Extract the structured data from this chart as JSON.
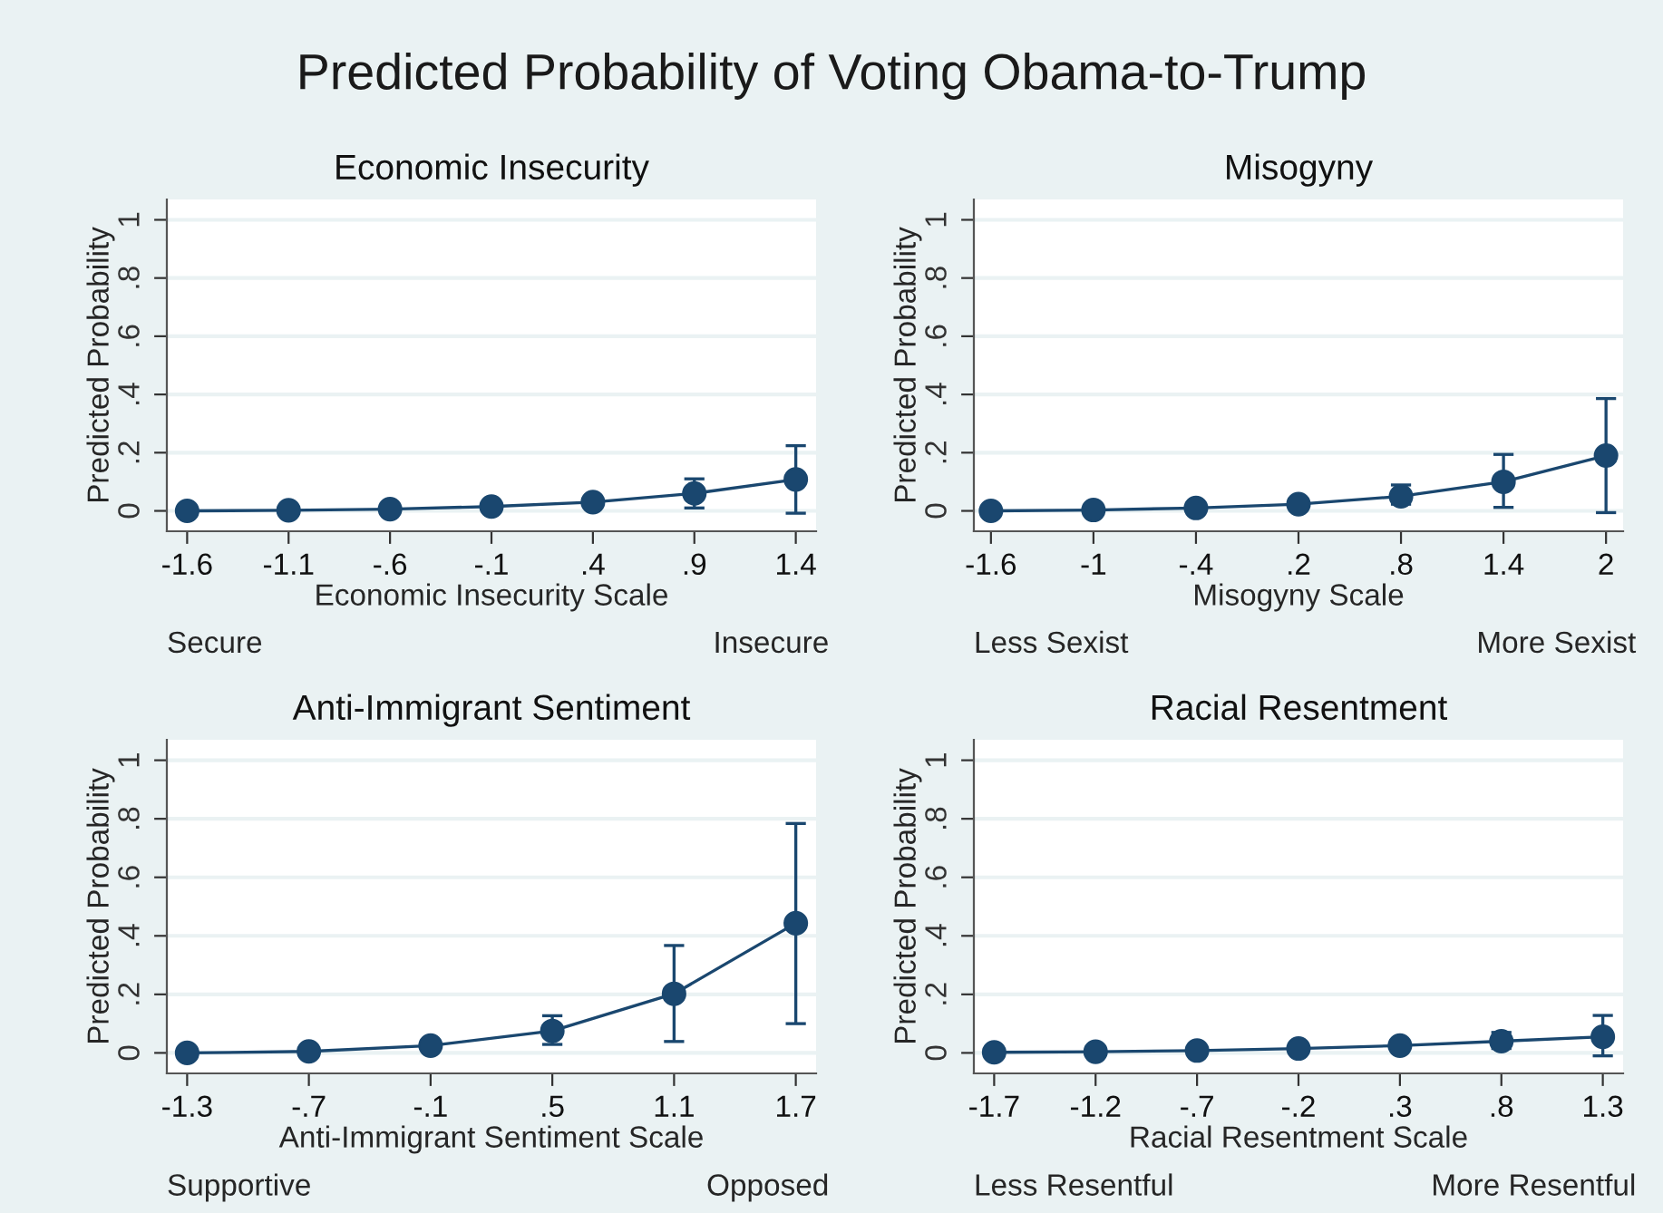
{
  "chart_data": [
    {
      "type": "line",
      "title": "Economic Insecurity",
      "xlabel": "Economic Insecurity Scale",
      "ylabel": "Predicted Probability",
      "annotations": [
        "Predicted Probability of Voting Obama-to-Trump",
        "Secure",
        "Insecure"
      ],
      "x": [
        -1.6,
        -1.1,
        -0.6,
        -0.1,
        0.4,
        0.9,
        1.4
      ],
      "series": [
        {
          "color": "#1a476f",
          "values": [
            0.0,
            0.002,
            0.006,
            0.015,
            0.03,
            0.06,
            0.108
          ],
          "errors": [
            null,
            null,
            null,
            null,
            null,
            [
              0.01,
              0.11
            ],
            [
              -0.008,
              0.224
            ]
          ]
        }
      ],
      "xlim": [
        -1.7,
        1.5
      ],
      "xticks": [
        {
          "value": -1.6,
          "label": "-1.6"
        },
        {
          "value": -1.1,
          "label": "-1.1"
        },
        {
          "value": -0.6,
          "label": "-.6"
        },
        {
          "value": -0.1,
          "label": "-.1"
        },
        {
          "value": 0.4,
          "label": ".4"
        },
        {
          "value": 0.9,
          "label": ".9"
        },
        {
          "value": 1.4,
          "label": "1.4"
        }
      ],
      "ylim": [
        -0.07,
        1.07
      ],
      "yticks": [
        0,
        {
          "value": 0.2,
          "label": ".2"
        },
        {
          "value": 0.4,
          "label": ".4"
        },
        {
          "value": 0.6,
          "label": ".6"
        },
        {
          "value": 0.8,
          "label": ".8"
        },
        1
      ],
      "grid": "y",
      "marker": "circle",
      "line_style": "solid"
    },
    {
      "type": "line",
      "title": "Misogyny",
      "xlabel": "Misogyny Scale",
      "ylabel": "Predicted Probability",
      "annotations": [
        "Less Sexist",
        "More Sexist"
      ],
      "x": [
        -1.6,
        -1,
        -0.4,
        0.2,
        0.8,
        1.4,
        2
      ],
      "series": [
        {
          "color": "#1a476f",
          "values": [
            0.0,
            0.003,
            0.01,
            0.023,
            0.05,
            0.1,
            0.19
          ],
          "errors": [
            null,
            null,
            null,
            null,
            [
              0.023,
              0.089
            ],
            [
              0.012,
              0.194
            ],
            [
              -0.006,
              0.386
            ]
          ]
        }
      ],
      "xlim": [
        -1.7,
        2.1
      ],
      "xticks": [
        {
          "value": -1.6,
          "label": "-1.6"
        },
        -1,
        {
          "value": -0.4,
          "label": "-.4"
        },
        {
          "value": 0.2,
          "label": ".2"
        },
        {
          "value": 0.8,
          "label": ".8"
        },
        1.4,
        2
      ],
      "ylim": [
        -0.07,
        1.07
      ],
      "yticks": [
        0,
        {
          "value": 0.2,
          "label": ".2"
        },
        {
          "value": 0.4,
          "label": ".4"
        },
        {
          "value": 0.6,
          "label": ".6"
        },
        {
          "value": 0.8,
          "label": ".8"
        },
        1
      ],
      "grid": "y",
      "marker": "circle",
      "line_style": "solid"
    },
    {
      "type": "line",
      "title": "Anti-Immigrant Sentiment",
      "xlabel": "Anti-Immigrant Sentiment Scale",
      "ylabel": "Predicted Probability",
      "annotations": [
        "Supportive",
        "Opposed"
      ],
      "x": [
        -1.3,
        -0.7,
        -0.1,
        0.5,
        1.1,
        1.7
      ],
      "series": [
        {
          "color": "#1a476f",
          "values": [
            0.0,
            0.005,
            0.025,
            0.075,
            0.202,
            0.443
          ],
          "errors": [
            null,
            null,
            null,
            [
              0.029,
              0.127
            ],
            [
              0.039,
              0.367
            ],
            [
              0.1,
              0.784
            ]
          ]
        }
      ],
      "xlim": [
        -1.4,
        1.8
      ],
      "xticks": [
        {
          "value": -1.3,
          "label": "-1.3"
        },
        {
          "value": -0.7,
          "label": "-.7"
        },
        {
          "value": -0.1,
          "label": "-.1"
        },
        {
          "value": 0.5,
          "label": ".5"
        },
        1.1,
        1.7
      ],
      "ylim": [
        -0.07,
        1.07
      ],
      "yticks": [
        0,
        {
          "value": 0.2,
          "label": ".2"
        },
        {
          "value": 0.4,
          "label": ".4"
        },
        {
          "value": 0.6,
          "label": ".6"
        },
        {
          "value": 0.8,
          "label": ".8"
        },
        1
      ],
      "grid": "y",
      "marker": "circle",
      "line_style": "solid"
    },
    {
      "type": "line",
      "title": "Racial Resentment",
      "xlabel": "Racial Resentment Scale",
      "ylabel": "Predicted Probability",
      "annotations": [
        "Less Resentful",
        "More Resentful"
      ],
      "x": [
        -1.7,
        -1.2,
        -0.7,
        -0.2,
        0.3,
        0.8,
        1.3
      ],
      "series": [
        {
          "color": "#1a476f",
          "values": [
            0.002,
            0.004,
            0.008,
            0.015,
            0.025,
            0.04,
            0.055
          ],
          "errors": [
            null,
            null,
            null,
            null,
            null,
            [
              0.015,
              0.07
            ],
            [
              -0.01,
              0.128
            ]
          ]
        }
      ],
      "xlim": [
        -1.8,
        1.4
      ],
      "xticks": [
        {
          "value": -1.7,
          "label": "-1.7"
        },
        {
          "value": -1.2,
          "label": "-1.2"
        },
        {
          "value": -0.7,
          "label": "-.7"
        },
        {
          "value": -0.2,
          "label": "-.2"
        },
        {
          "value": 0.3,
          "label": ".3"
        },
        {
          "value": 0.8,
          "label": ".8"
        },
        1.3
      ],
      "ylim": [
        -0.07,
        1.07
      ],
      "yticks": [
        0,
        {
          "value": 0.2,
          "label": ".2"
        },
        {
          "value": 0.4,
          "label": ".4"
        },
        {
          "value": 0.6,
          "label": ".6"
        },
        {
          "value": 0.8,
          "label": ".8"
        },
        1
      ],
      "grid": "y",
      "marker": "circle",
      "line_style": "solid"
    }
  ]
}
